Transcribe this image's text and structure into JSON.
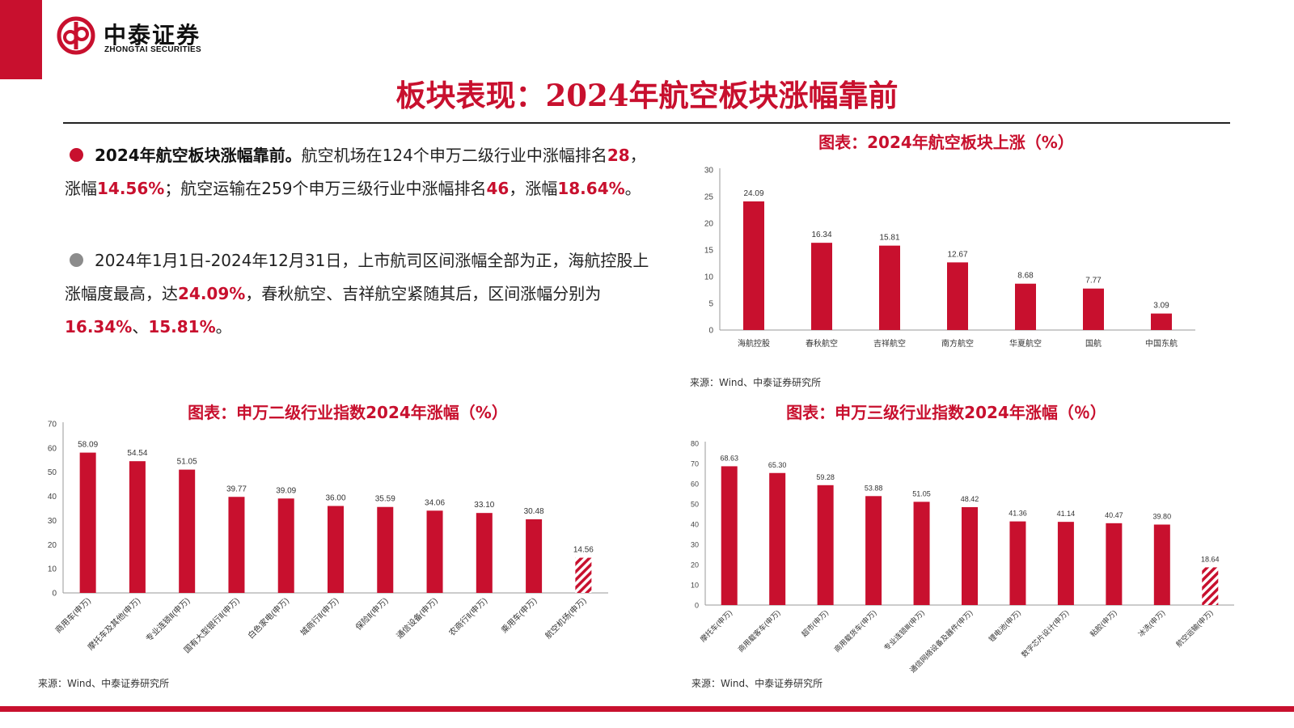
{
  "brand": {
    "name_cn": "中泰证券",
    "name_en": "ZHONGTAI SECURITIES",
    "color": "#c8102e"
  },
  "page_title": "板块表现：2024年航空板块涨幅靠前",
  "paragraphs": [
    {
      "bullet_color": "#c8102e",
      "lead": "2024年航空板块涨幅靠前。",
      "segments": [
        {
          "t": "航空机场在124个申万二级行业中涨幅排名"
        },
        {
          "t": "28",
          "hl": true
        },
        {
          "t": "，涨幅"
        },
        {
          "t": "14.56%",
          "hl": true
        },
        {
          "t": "；航空运输在259个申万三级行业中涨幅排名"
        },
        {
          "t": "46",
          "hl": true
        },
        {
          "t": "，涨幅"
        },
        {
          "t": "18.64%",
          "hl": true
        },
        {
          "t": "。"
        }
      ]
    },
    {
      "bullet_color": "#8c8c8c",
      "lead": "",
      "segments": [
        {
          "t": "2024年1月1日-2024年12月31日，上市航司区间涨幅全部为正，海航控股上涨幅度最高，达"
        },
        {
          "t": "24.09%",
          "hl": true
        },
        {
          "t": "，春秋航空、吉祥航空紧随其后，区间涨幅分别为"
        },
        {
          "t": "16.34%",
          "hl": true
        },
        {
          "t": "、"
        },
        {
          "t": "15.81%",
          "hl": true
        },
        {
          "t": "。"
        }
      ]
    }
  ],
  "charts": {
    "top_right": {
      "title": "图表：2024年航空板块上涨（%）",
      "source": "来源：Wind、中泰证券研究所"
    },
    "bottom_left": {
      "title": "图表：申万二级行业指数2024年涨幅（%）",
      "source": "来源：Wind、中泰证券研究所"
    },
    "bottom_right": {
      "title": "图表：申万三级行业指数2024年涨幅（％）",
      "source": "来源：Wind、中泰证券研究所"
    }
  },
  "chart_data": [
    {
      "type": "bar",
      "title": "图表：2024年航空板块上涨（%）",
      "categories": [
        "海航控股",
        "春秋航空",
        "吉祥航空",
        "南方航空",
        "华夏航空",
        "国航",
        "中国东航"
      ],
      "values": [
        24.09,
        16.34,
        15.81,
        12.67,
        8.68,
        7.77,
        3.09
      ],
      "labels": [
        "24.09",
        "16.34",
        "15.81",
        "12.67",
        "8.68",
        "7.77",
        "3.09"
      ],
      "ylim": [
        0,
        30
      ],
      "yticks": [
        0,
        5,
        10,
        15,
        20,
        25,
        30
      ],
      "color": "#c8102e",
      "hatched_index": -1,
      "rotate_labels": false,
      "grid": false
    },
    {
      "type": "bar",
      "title": "图表：申万二级行业指数2024年涨幅（%）",
      "categories": [
        "商用车(申万)",
        "摩托车及其他(申万)",
        "专业连锁Ⅱ(申万)",
        "国有大型银行Ⅱ(申万)",
        "白色家电(申万)",
        "城商行Ⅱ(申万)",
        "保险Ⅱ(申万)",
        "通信设备(申万)",
        "农商行Ⅱ(申万)",
        "乘用车(申万)",
        "航空机场(申万)"
      ],
      "values": [
        58.09,
        54.54,
        51.05,
        39.77,
        39.09,
        36.0,
        35.59,
        34.06,
        33.1,
        30.48,
        14.56
      ],
      "labels": [
        "58.09",
        "54.54",
        "51.05",
        "39.77",
        "39.09",
        "36.00",
        "35.59",
        "34.06",
        "33.10",
        "30.48",
        "14.56"
      ],
      "ylim": [
        0,
        70
      ],
      "yticks": [
        0,
        10,
        20,
        30,
        40,
        50,
        60,
        70
      ],
      "color": "#c8102e",
      "hatched_index": 10,
      "rotate_labels": true,
      "grid": false
    },
    {
      "type": "bar",
      "title": "图表：申万三级行业指数2024年涨幅（％）",
      "categories": [
        "摩托车(申万)",
        "商用载客车(申万)",
        "超市(申万)",
        "商用载货车(申万)",
        "专业连锁Ⅲ(申万)",
        "通信网络设备及器件(申万)",
        "锂电池(申万)",
        "数字芯片设计(申万)",
        "粘胶(申万)",
        "冰洗(申万)",
        "航空运输(申万)"
      ],
      "values": [
        68.63,
        65.3,
        59.28,
        53.88,
        51.05,
        48.42,
        41.36,
        41.14,
        40.47,
        39.8,
        18.64
      ],
      "labels": [
        "68.63",
        "65.30",
        "59.28",
        "53.88",
        "51.05",
        "48.42",
        "41.36",
        "41.14",
        "40.47",
        "39.80",
        "18.64"
      ],
      "ylim": [
        0,
        80
      ],
      "yticks": [
        0,
        10,
        20,
        30,
        40,
        50,
        60,
        70,
        80
      ],
      "color": "#c8102e",
      "hatched_index": 10,
      "rotate_labels": true,
      "grid": false
    }
  ]
}
